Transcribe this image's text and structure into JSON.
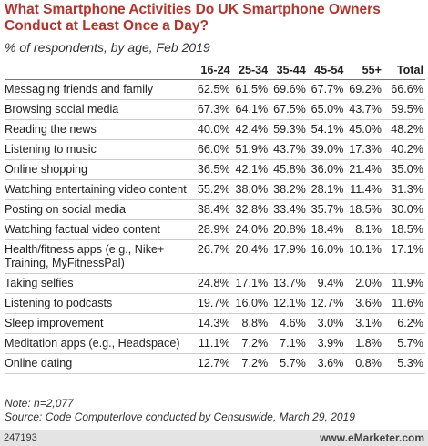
{
  "header": {
    "title": "What Smartphone Activities Do UK Smartphone Owners Conduct at Least Once a Day?",
    "subtitle": "% of respondents, by age, Feb 2019"
  },
  "table": {
    "columns": [
      "16-24",
      "25-34",
      "35-44",
      "45-54",
      "55+",
      "Total"
    ],
    "rows": [
      [
        "Messaging friends and family",
        "62.5%",
        "61.5%",
        "69.6%",
        "67.7%",
        "69.2%",
        "66.6%"
      ],
      [
        "Browsing social media",
        "67.3%",
        "64.1%",
        "67.5%",
        "65.0%",
        "43.7%",
        "59.5%"
      ],
      [
        "Reading the news",
        "40.0%",
        "42.4%",
        "59.3%",
        "54.1%",
        "45.0%",
        "48.2%"
      ],
      [
        "Listening to music",
        "66.0%",
        "51.9%",
        "43.7%",
        "39.0%",
        "17.3%",
        "40.2%"
      ],
      [
        "Online shopping",
        "36.5%",
        "42.1%",
        "45.8%",
        "36.0%",
        "21.4%",
        "35.0%"
      ],
      [
        "Watching entertaining video content",
        "55.2%",
        "38.0%",
        "38.2%",
        "28.1%",
        "11.4%",
        "31.3%"
      ],
      [
        "Posting on social media",
        "38.4%",
        "32.8%",
        "33.4%",
        "35.7%",
        "18.5%",
        "30.0%"
      ],
      [
        "Watching factual video content",
        "28.9%",
        "24.0%",
        "20.8%",
        "18.4%",
        "8.1%",
        "18.5%"
      ],
      [
        "Health/fitness apps (e.g., Nike+ Training, MyFitnessPal)",
        "26.7%",
        "20.4%",
        "17.9%",
        "16.0%",
        "10.1%",
        "17.1%"
      ],
      [
        "Taking selfies",
        "24.8%",
        "17.1%",
        "13.7%",
        "9.4%",
        "2.0%",
        "11.9%"
      ],
      [
        "Listening to podcasts",
        "19.7%",
        "16.0%",
        "12.1%",
        "12.7%",
        "3.6%",
        "11.6%"
      ],
      [
        "Sleep improvement",
        "14.3%",
        "8.8%",
        "4.6%",
        "3.0%",
        "3.1%",
        "6.2%"
      ],
      [
        "Meditation apps (e.g., Headspace)",
        "11.1%",
        "7.2%",
        "7.1%",
        "3.9%",
        "1.8%",
        "5.7%"
      ],
      [
        "Online dating",
        "12.7%",
        "7.2%",
        "5.7%",
        "3.6%",
        "0.8%",
        "5.3%"
      ]
    ]
  },
  "notes": {
    "note": "Note: n=2,077",
    "source": "Source: Code Computerlove conducted by Censuswide, March 29, 2019"
  },
  "footer": {
    "id": "247193",
    "brand": "www.eMarketer.com"
  }
}
